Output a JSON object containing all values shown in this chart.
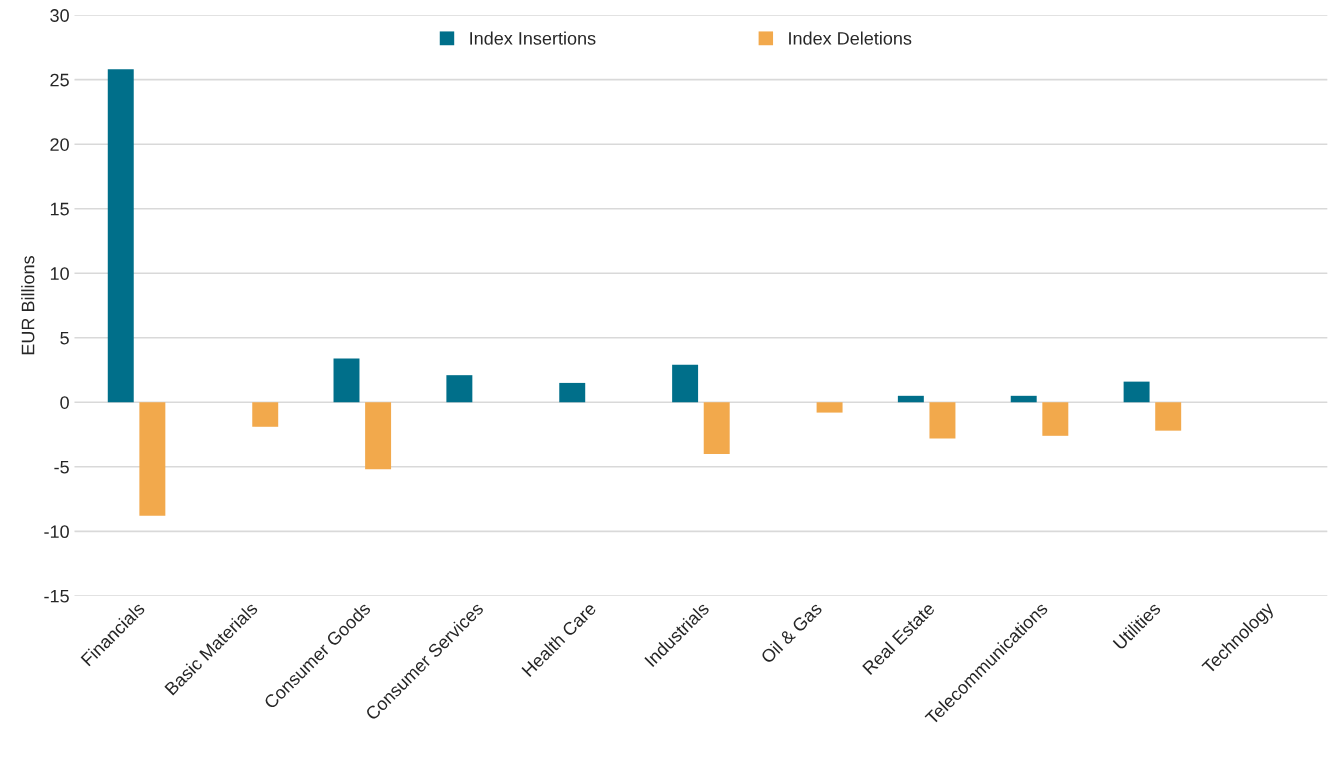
{
  "chart_data": {
    "type": "bar",
    "ylabel": "EUR Billions",
    "categories": [
      "Financials",
      "Basic Materials",
      "Consumer Goods",
      "Consumer Services",
      "Health Care",
      "Industrials",
      "Oil & Gas",
      "Real Estate",
      "Telecommunications",
      "Utilities",
      "Technology"
    ],
    "series": [
      {
        "name": "Index Insertions",
        "color": "#006f8a",
        "values": [
          25.8,
          null,
          3.4,
          2.1,
          1.5,
          2.9,
          null,
          0.5,
          0.5,
          1.6,
          null
        ]
      },
      {
        "name": "Index Deletions",
        "color": "#f2a94c",
        "values": [
          -8.8,
          -1.9,
          -5.2,
          null,
          null,
          -4.0,
          -0.8,
          -2.8,
          -2.6,
          -2.2,
          null
        ]
      }
    ],
    "ylim": [
      -15,
      30
    ],
    "yticks": [
      -15,
      -10,
      -5,
      0,
      5,
      10,
      15,
      20,
      25,
      30
    ],
    "grid": "y",
    "legend": "top"
  }
}
